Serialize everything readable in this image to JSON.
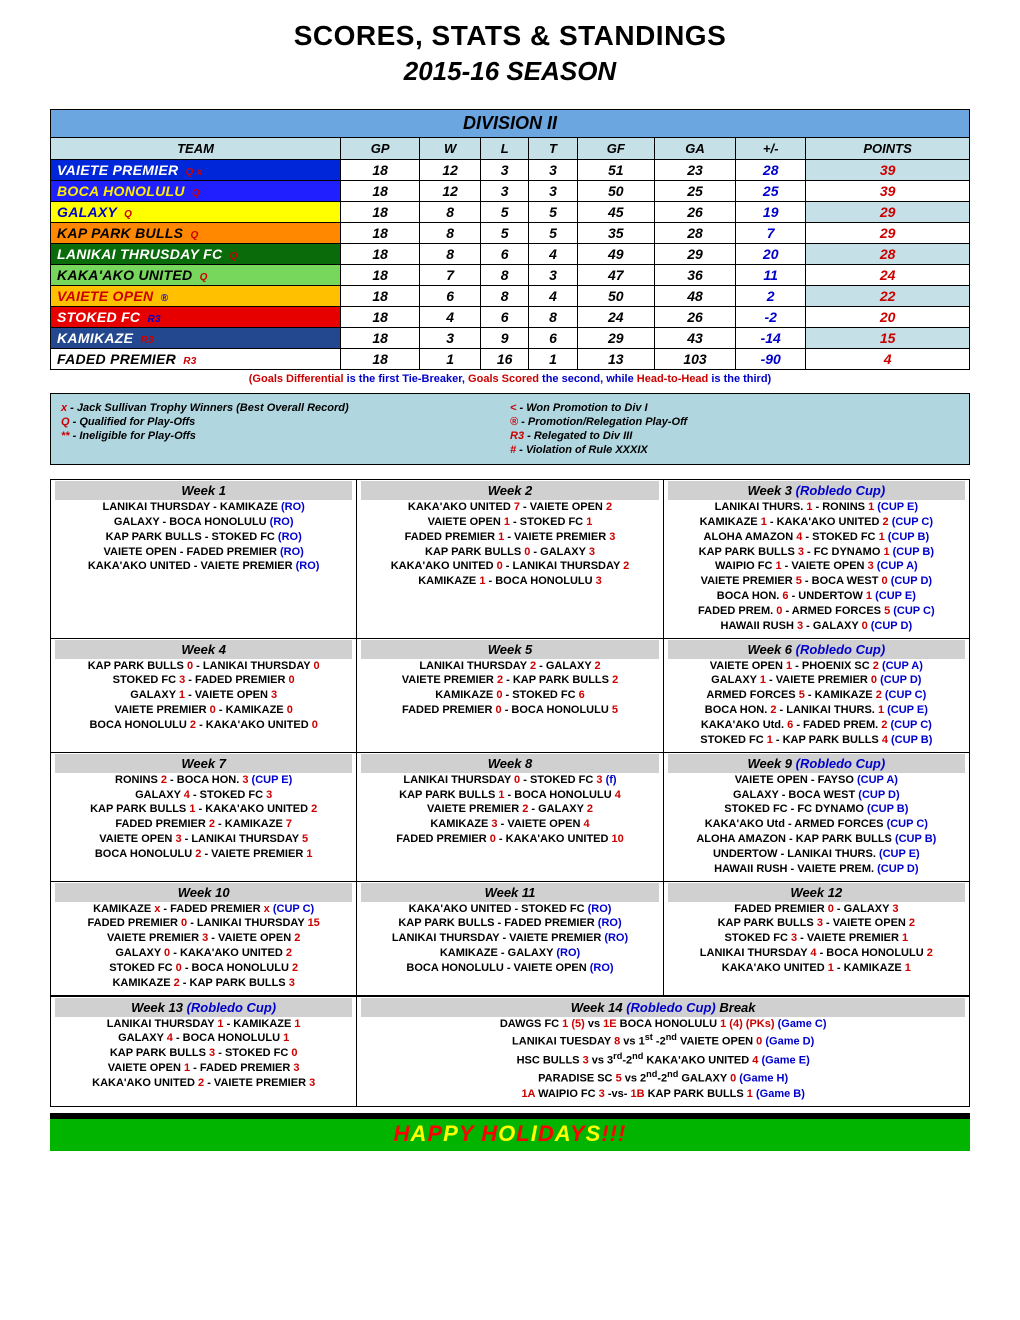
{
  "header": {
    "title1": "SCORES, STATS & STANDINGS",
    "title2": "2015-16 SEASON",
    "division": "DIVISION  II"
  },
  "columns": [
    "TEAM",
    "GP",
    "W",
    "L",
    "T",
    "GF",
    "GA",
    "+/-",
    "POINTS"
  ],
  "standings": [
    {
      "team": "VAIETE PREMIER",
      "qual": "Q x",
      "bg": "#0026d9",
      "fg": "#ffffff",
      "qfg": "#cc0000",
      "gp": 18,
      "w": 12,
      "l": 3,
      "t": 3,
      "gf": 51,
      "ga": 23,
      "pm": 28,
      "pts": 39,
      "pts_bg": "#c5e0e6"
    },
    {
      "team": "BOCA HONOLULU",
      "qual": "Q",
      "bg": "#1f1fff",
      "fg": "#ffee00",
      "qfg": "#cc0000",
      "gp": 18,
      "w": 12,
      "l": 3,
      "t": 3,
      "gf": 50,
      "ga": 25,
      "pm": 25,
      "pts": 39,
      "pts_bg": "#ffffff"
    },
    {
      "team": "GALAXY",
      "qual": "Q",
      "bg": "#ffff00",
      "fg": "#0000cc",
      "qfg": "#cc0000",
      "gp": 18,
      "w": 8,
      "l": 5,
      "t": 5,
      "gf": 45,
      "ga": 26,
      "pm": 19,
      "pts": 29,
      "pts_bg": "#c5e0e6"
    },
    {
      "team": "KAP PARK BULLS",
      "qual": "Q",
      "bg": "#ff8800",
      "fg": "#000000",
      "qfg": "#cc0000",
      "gp": 18,
      "w": 8,
      "l": 5,
      "t": 5,
      "gf": 35,
      "ga": 28,
      "pm": 7,
      "pts": 29,
      "pts_bg": "#ffffff"
    },
    {
      "team": "LANIKAI THRUSDAY FC",
      "qual": "Q",
      "bg": "#0a6b0a",
      "fg": "#ffffff",
      "qfg": "#cc0000",
      "gp": 18,
      "w": 8,
      "l": 6,
      "t": 4,
      "gf": 49,
      "ga": 29,
      "pm": 20,
      "pts": 28,
      "pts_bg": "#c5e0e6"
    },
    {
      "team": "KAKA'AKO UNITED",
      "qual": "Q",
      "bg": "#77d65c",
      "fg": "#000000",
      "qfg": "#cc0000",
      "gp": 18,
      "w": 7,
      "l": 8,
      "t": 3,
      "gf": 47,
      "ga": 36,
      "pm": 11,
      "pts": 24,
      "pts_bg": "#ffffff"
    },
    {
      "team": "VAIETE OPEN",
      "qual": "®",
      "bg": "#ffc000",
      "fg": "#cc0000",
      "qfg": "#0000cc",
      "gp": 18,
      "w": 6,
      "l": 8,
      "t": 4,
      "gf": 50,
      "ga": 48,
      "pm": 2,
      "pts": 22,
      "pts_bg": "#c5e0e6"
    },
    {
      "team": "STOKED FC",
      "qual": "R3",
      "bg": "#e60000",
      "fg": "#ffffff",
      "qfg": "#0000cc",
      "gp": 18,
      "w": 4,
      "l": 6,
      "t": 8,
      "gf": 24,
      "ga": 26,
      "pm": -2,
      "pts": 20,
      "pts_bg": "#ffffff"
    },
    {
      "team": "KAMIKAZE",
      "qual": "R3",
      "bg": "#24488f",
      "fg": "#ffffff",
      "qfg": "#cc0000",
      "gp": 18,
      "w": 3,
      "l": 9,
      "t": 6,
      "gf": 29,
      "ga": 43,
      "pm": -14,
      "pts": 15,
      "pts_bg": "#c5e0e6"
    },
    {
      "team": "FADED PREMIER",
      "qual": "R3",
      "bg": "#ffffff",
      "fg": "#000000",
      "qfg": "#cc0000",
      "gp": 18,
      "w": 1,
      "l": 16,
      "t": 1,
      "gf": 13,
      "ga": 103,
      "pm": -90,
      "pts": 4,
      "pts_bg": "#ffffff"
    }
  ],
  "tiebreak": {
    "pre": "(Goals Differential",
    "mid1": "  is the first Tie-Breaker, ",
    "g2": "Goals Scored",
    "mid2": " the second, while ",
    "g3": "Head-to-Head",
    "post": " is the third)"
  },
  "legend_left": [
    {
      "sym": "x",
      "text": " - Jack Sullivan Trophy Winners (Best Overall Record)"
    },
    {
      "sym": "Q",
      "text": " - Qualified for Play-Offs"
    },
    {
      "sym": "**",
      "text": " - Ineligible for Play-Offs"
    }
  ],
  "legend_right": [
    {
      "sym": "<",
      "text": " - Won Promotion to Div I"
    },
    {
      "sym": "®",
      "text": " - Promotion/Relegation Play-Off"
    },
    {
      "sym": "R3",
      "text": " - Relegated to Div III"
    },
    {
      "sym": "#",
      "text": " - Violation of Rule XXXIX"
    }
  ],
  "week_rows": [
    [
      {
        "title": "Week 1",
        "cup": "",
        "games": [
          [
            "LANIKAI THURSDAY",
            "",
            "-",
            "KAMIKAZE",
            "",
            "(RO)"
          ],
          [
            "GALAXY",
            "",
            "-",
            "BOCA HONOLULU",
            "",
            "(RO)"
          ],
          [
            "KAP PARK BULLS",
            "",
            "-",
            "STOKED FC",
            "",
            "(RO)"
          ],
          [
            "VAIETE OPEN",
            "",
            "-",
            "FADED PREMIER",
            "",
            "(RO)"
          ],
          [
            "KAKA'AKO UNITED",
            "",
            "-",
            "VAIETE PREMIER",
            "",
            "(RO)"
          ]
        ]
      },
      {
        "title": "Week 2",
        "cup": "",
        "games": [
          [
            "KAKA'AKO UNITED",
            "7",
            "-",
            "VAIETE OPEN",
            "2",
            ""
          ],
          [
            "VAIETE OPEN",
            "1",
            "-",
            "STOKED FC",
            "1",
            ""
          ],
          [
            "FADED PREMIER",
            "1",
            "-",
            "VAIETE PREMIER",
            "3",
            ""
          ],
          [
            "KAP PARK BULLS",
            "0",
            "-",
            "GALAXY",
            "3",
            ""
          ],
          [
            "KAKA'AKO UNITED",
            "0",
            "-",
            "LANIKAI THURSDAY",
            "2",
            ""
          ],
          [
            "KAMIKAZE",
            "1",
            "-",
            "BOCA HONOLULU",
            "3",
            ""
          ]
        ]
      },
      {
        "title": "Week 3",
        "cup": "(Robledo Cup)",
        "games": [
          [
            "LANIKAI THURS.",
            "1",
            "-",
            "RONINS",
            "1",
            "(CUP E)"
          ],
          [
            "KAMIKAZE",
            "1",
            "-",
            "KAKA'AKO UNITED",
            "2",
            "(CUP C)"
          ],
          [
            "ALOHA AMAZON",
            "4",
            "-",
            "STOKED FC",
            "1",
            "(CUP B)"
          ],
          [
            "KAP PARK BULLS",
            "3",
            "-",
            "FC DYNAMO",
            "1",
            "(CUP B)"
          ],
          [
            "WAIPIO FC",
            "1",
            "-",
            "VAIETE OPEN",
            "3",
            "(CUP A)"
          ],
          [
            "VAIETE PREMIER",
            "5",
            "-",
            "BOCA WEST",
            "0",
            "(CUP D)"
          ],
          [
            "BOCA HON.",
            "6",
            "-",
            "UNDERTOW",
            "1",
            "(CUP E)"
          ],
          [
            "FADED PREM.",
            "0",
            "-",
            "ARMED FORCES",
            "5",
            "(CUP C)"
          ],
          [
            "HAWAII RUSH",
            "3",
            "-",
            "GALAXY",
            "0",
            "(CUP D)"
          ]
        ]
      }
    ],
    [
      {
        "title": "Week 4",
        "cup": "",
        "games": [
          [
            "KAP PARK BULLS",
            "0",
            "-",
            "LANIKAI THURSDAY",
            "0",
            ""
          ],
          [
            "STOKED FC",
            "3",
            "-",
            "FADED PREMIER",
            "0",
            ""
          ],
          [
            "GALAXY",
            "1",
            "-",
            "VAIETE OPEN",
            "3",
            ""
          ],
          [
            "VAIETE PREMIER",
            "0",
            "-",
            "KAMIKAZE",
            "0",
            ""
          ],
          [
            "BOCA HONOLULU",
            "2",
            "-",
            "KAKA'AKO UNITED",
            "0",
            ""
          ]
        ]
      },
      {
        "title": "Week 5",
        "cup": "",
        "games": [
          [
            "LANIKAI THURSDAY",
            "2",
            "-",
            "GALAXY",
            "2",
            ""
          ],
          [
            "VAIETE PREMIER",
            "2",
            "-",
            "KAP PARK BULLS",
            "2",
            ""
          ],
          [
            "KAMIKAZE",
            "0",
            "-",
            "STOKED FC",
            "6",
            ""
          ],
          [
            "FADED PREMIER",
            "0",
            "-",
            "BOCA HONOLULU",
            "5",
            ""
          ]
        ]
      },
      {
        "title": "Week 6",
        "cup": "(Robledo Cup)",
        "games": [
          [
            "VAIETE OPEN",
            "1",
            "-",
            "PHOENIX SC",
            "2",
            "(CUP A)"
          ],
          [
            "GALAXY",
            "1",
            "-",
            "VAIETE PREMIER",
            "0",
            "(CUP D)"
          ],
          [
            "ARMED FORCES",
            "5",
            "-",
            "KAMIKAZE",
            "2",
            "(CUP C)"
          ],
          [
            "BOCA HON.",
            "2",
            "-",
            "LANIKAI THURS.",
            "1",
            "(CUP E)"
          ],
          [
            "KAKA'AKO Utd.",
            "6",
            "-",
            "FADED PREM.",
            "2",
            "(CUP C)"
          ],
          [
            "STOKED FC",
            "1",
            "-",
            "KAP PARK BULLS",
            "4",
            "(CUP B)"
          ]
        ]
      }
    ],
    [
      {
        "title": "Week 7",
        "cup": "",
        "games": [
          [
            "RONINS",
            "2",
            "-",
            "BOCA HON.",
            "3",
            "(CUP E)"
          ],
          [
            "GALAXY",
            "4",
            "-",
            "STOKED FC",
            "3",
            ""
          ],
          [
            "KAP PARK BULLS",
            "1",
            "-",
            "KAKA'AKO UNITED",
            "2",
            ""
          ],
          [
            "FADED PREMIER",
            "2",
            "-",
            "KAMIKAZE",
            "7",
            ""
          ],
          [
            "VAIETE OPEN",
            "3",
            "-",
            "LANIKAI THURSDAY",
            "5",
            ""
          ],
          [
            "BOCA HONOLULU",
            "2",
            "-",
            "VAIETE PREMIER",
            "1",
            ""
          ]
        ]
      },
      {
        "title": "Week 8",
        "cup": "",
        "games": [
          [
            "LANIKAI THURSDAY",
            "0",
            "-",
            "STOKED FC",
            "3",
            "(f)"
          ],
          [
            "KAP PARK BULLS",
            "1",
            "-",
            "BOCA HONOLULU",
            "4",
            ""
          ],
          [
            "VAIETE PREMIER",
            "2",
            "-",
            "GALAXY",
            "2",
            ""
          ],
          [
            "KAMIKAZE",
            "3",
            "-",
            "VAIETE OPEN",
            "4",
            ""
          ],
          [
            "FADED PREMIER",
            "0",
            "-",
            "KAKA'AKO UNITED",
            "10",
            ""
          ]
        ]
      },
      {
        "title": "Week 9",
        "cup": "(Robledo Cup)",
        "games": [
          [
            "VAIETE OPEN",
            "",
            "-",
            "FAYSO",
            "",
            "(CUP A)"
          ],
          [
            "GALAXY",
            "",
            "-",
            "BOCA WEST",
            "",
            "(CUP D)"
          ],
          [
            "STOKED FC",
            "",
            "-",
            "FC DYNAMO",
            "",
            "(CUP B)"
          ],
          [
            "KAKA'AKO Utd",
            "",
            "-",
            "ARMED FORCES",
            "",
            "(CUP C)"
          ],
          [
            "ALOHA AMAZON",
            "",
            "-",
            "KAP PARK BULLS",
            "",
            "(CUP B)"
          ],
          [
            "UNDERTOW",
            "",
            "-",
            "LANIKAI THURS.",
            "",
            "(CUP E)"
          ],
          [
            "HAWAII RUSH",
            "",
            "-",
            "VAIETE PREM.",
            "",
            "(CUP D)"
          ]
        ]
      }
    ],
    [
      {
        "title": "Week 10",
        "cup": "",
        "games": [
          [
            "KAMIKAZE",
            "x",
            "-",
            "FADED PREMIER",
            "x",
            "(CUP C)"
          ],
          [
            "FADED PREMIER",
            "0",
            "-",
            "LANIKAI THURSDAY",
            "15",
            ""
          ],
          [
            "VAIETE PREMIER",
            "3",
            "-",
            "VAIETE OPEN",
            "2",
            ""
          ],
          [
            "GALAXY",
            "0",
            "-",
            "KAKA'AKO UNITED",
            "2",
            ""
          ],
          [
            "STOKED FC",
            "0",
            "-",
            "BOCA HONOLULU",
            "2",
            ""
          ],
          [
            "KAMIKAZE",
            "2",
            "-",
            "KAP PARK BULLS",
            "3",
            ""
          ]
        ]
      },
      {
        "title": "Week 11",
        "cup": "",
        "games": [
          [
            "KAKA'AKO UNITED",
            "",
            "-",
            "STOKED FC",
            "",
            "(RO)"
          ],
          [
            "KAP PARK BULLS",
            "",
            "-",
            "FADED PREMIER",
            "",
            "(RO)"
          ],
          [
            "LANIKAI THURSDAY",
            "",
            "-",
            "VAIETE PREMIER",
            "",
            "(RO)"
          ],
          [
            "KAMIKAZE",
            "",
            "-",
            "GALAXY",
            "",
            "(RO)"
          ],
          [
            "BOCA HONOLULU",
            "",
            "-",
            "VAIETE OPEN",
            "",
            "(RO)"
          ]
        ]
      },
      {
        "title": "Week 12",
        "cup": "",
        "games": [
          [
            "FADED PREMIER",
            "0",
            "-",
            "GALAXY",
            "3",
            ""
          ],
          [
            "KAP PARK BULLS",
            "3",
            "-",
            "VAIETE OPEN",
            "2",
            ""
          ],
          [
            "STOKED FC",
            "3",
            "-",
            "VAIETE PREMIER",
            "1",
            ""
          ],
          [
            "LANIKAI THURSDAY",
            "4",
            "-",
            "BOCA HONOLULU",
            "2",
            ""
          ],
          [
            "KAKA'AKO UNITED",
            "1",
            "-",
            "KAMIKAZE",
            "1",
            ""
          ]
        ]
      }
    ]
  ],
  "week13": {
    "title": "Week 13",
    "cup": "(Robledo Cup)",
    "games": [
      [
        "LANIKAI THURSDAY",
        "1",
        "-",
        "KAMIKAZE",
        "1",
        ""
      ],
      [
        "GALAXY",
        "4",
        "-",
        "BOCA HONOLULU",
        "1",
        ""
      ],
      [
        "KAP PARK BULLS",
        "3",
        "-",
        "STOKED FC",
        "0",
        ""
      ],
      [
        "VAIETE OPEN",
        "1",
        "-",
        "FADED PREMIER",
        "3",
        ""
      ],
      [
        "KAKA'AKO UNITED",
        "2",
        "-",
        "VAIETE PREMIER",
        "3",
        ""
      ]
    ]
  },
  "week14": {
    "title": "Week 14",
    "cup": "(Robledo Cup)",
    "extra": " Break",
    "games": [
      "DAWGS FC  <sc>1 (5)</sc>  vs  <sc>1E</sc> BOCA HONOLULU  <sc>1 (4)</sc>  <pks>(PKs)</pks>  <note>(Game C)</note>",
      "LANIKAI TUESDAY  <sc>8</sc>  vs  1<sup>st</sup> -2<sup>nd</sup> VAIETE OPEN  <sc>0</sc>   <note>(Game D)</note>",
      "HSC BULLS  <sc>3</sc>  vs  3<sup>rd</sup>-2<sup>nd</sup> KAKA'AKO UNITED  <sc>4</sc>   <note>(Game E)</note>",
      "PARADISE SC  <sc>5</sc>  vs  2<sup>nd</sup>-2<sup>nd</sup> GALAXY  <sc>0</sc>  <note>(Game H)</note>",
      "<sc>1A</sc> WAIPIO FC  <sc>3</sc>  -vs-  <sc>1B</sc> KAP PARK BULLS  <sc>1</sc>   <note>(Game B)</note>"
    ]
  },
  "footer": {
    "text": "HAPPY HOLIDAYS!!!",
    "colors": [
      "#ff0000",
      "#ffff00",
      "#ff0000",
      "#ffff00",
      "#ff0000",
      "#ffffff",
      "#ff0000",
      "#ffff00",
      "#ff0000",
      "#ffff00",
      "#ff0000",
      "#ffff00",
      "#ff0000",
      "#ffff00",
      "#ff0000",
      "#ff0000",
      "#ff0000"
    ]
  },
  "stat_colors": {
    "pm": "#0000cc",
    "pts": "#cc0000",
    "stat": "#000000"
  }
}
